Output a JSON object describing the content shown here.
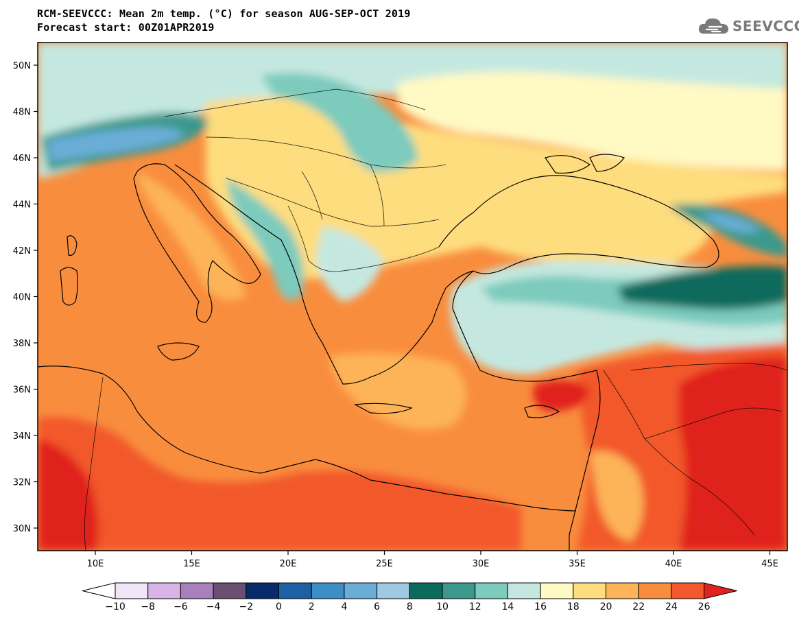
{
  "header": {
    "title_line1": "RCM-SEEVCCC: Mean 2m temp. (°C) for season AUG-SEP-OCT 2019",
    "title_line2": "Forecast start: 00Z01APR2019"
  },
  "logo": {
    "text": "SEEVCCC",
    "icon": "cloud-icon",
    "color": "#7a7a7a"
  },
  "map": {
    "lat_labels": [
      "50N",
      "48N",
      "46N",
      "44N",
      "42N",
      "40N",
      "38N",
      "36N",
      "34N",
      "32N",
      "30N"
    ],
    "lon_labels": [
      "10E",
      "15E",
      "20E",
      "25E",
      "30E",
      "35E",
      "40E",
      "45E"
    ]
  },
  "colorbar": {
    "tick_labels": [
      "−10",
      "−8",
      "−6",
      "−4",
      "−2",
      "0",
      "2",
      "4",
      "6",
      "8",
      "10",
      "12",
      "14",
      "16",
      "18",
      "20",
      "22",
      "24",
      "26"
    ],
    "bins": [
      {
        "color": "#f1e6f7"
      },
      {
        "color": "#d9b4e6"
      },
      {
        "color": "#a97fbd"
      },
      {
        "color": "#6b4f73"
      },
      {
        "color": "#062c6b"
      },
      {
        "color": "#1c61a3"
      },
      {
        "color": "#3d8dc7"
      },
      {
        "color": "#6aaed8"
      },
      {
        "color": "#9fc9e2"
      },
      {
        "color": "#0a6b5c"
      },
      {
        "color": "#3a998c"
      },
      {
        "color": "#7ccbbd"
      },
      {
        "color": "#c4e8e0"
      },
      {
        "color": "#fff9c4"
      },
      {
        "color": "#fedd7e"
      },
      {
        "color": "#fdb459"
      },
      {
        "color": "#f98d3e"
      },
      {
        "color": "#f2582c"
      }
    ],
    "under_color": "#ffffff",
    "over_color": "#e0231f"
  }
}
